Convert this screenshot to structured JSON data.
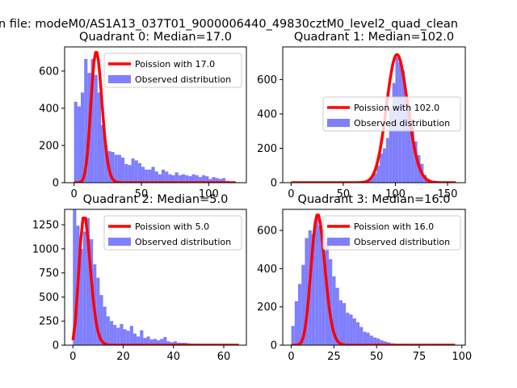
{
  "suptitle": "n file: modeM0/AS1A13_037T01_9000006440_49830cztM0_level2_quad_clean",
  "colors": {
    "observed": "#7f7fff",
    "poisson": "#ff0000"
  },
  "chart_data": [
    {
      "type": "bar",
      "title": "Quadrant 0: Median=17.0",
      "median": 17,
      "legend": {
        "placement": "upper-right",
        "entries": [
          "Poission with 17.0",
          "Observed distribution"
        ]
      },
      "xlim": [
        -7,
        128
      ],
      "ylim": [
        0,
        730
      ],
      "xticks": [
        0,
        50,
        100
      ],
      "yticks": [
        0,
        200,
        400,
        600
      ],
      "observed": {
        "name": "Observed distribution",
        "bins": [
          [
            0,
            435
          ],
          [
            2.5,
            410
          ],
          [
            5,
            485
          ],
          [
            7.5,
            665
          ],
          [
            10,
            590
          ],
          [
            12.5,
            665
          ],
          [
            15,
            580
          ],
          [
            17.5,
            485
          ],
          [
            20,
            310
          ],
          [
            22.5,
            200
          ],
          [
            25,
            170
          ],
          [
            27.5,
            165
          ],
          [
            30,
            150
          ],
          [
            32.5,
            150
          ],
          [
            35,
            135
          ],
          [
            37.5,
            100
          ],
          [
            40,
            95
          ],
          [
            42.5,
            130
          ],
          [
            45,
            120
          ],
          [
            47.5,
            105
          ],
          [
            50,
            85
          ],
          [
            52.5,
            70
          ],
          [
            55,
            70
          ],
          [
            57.5,
            85
          ],
          [
            60,
            60
          ],
          [
            62.5,
            45
          ],
          [
            65,
            70
          ],
          [
            67.5,
            60
          ],
          [
            70,
            45
          ],
          [
            72.5,
            40
          ],
          [
            75,
            55
          ],
          [
            77.5,
            40
          ],
          [
            80,
            45
          ],
          [
            82.5,
            40
          ],
          [
            85,
            35
          ],
          [
            87.5,
            45
          ],
          [
            90,
            40
          ],
          [
            92.5,
            30
          ],
          [
            95,
            40
          ],
          [
            97.5,
            35
          ],
          [
            100,
            20
          ],
          [
            102.5,
            30
          ],
          [
            105,
            25
          ],
          [
            107.5,
            20
          ],
          [
            110,
            25
          ],
          [
            112.5,
            10
          ]
        ],
        "bin_width": 2.5
      },
      "poisson": {
        "name": "Poission with 17.0",
        "lambda": 17,
        "x_range": [
          0,
          120
        ],
        "peak": 700
      }
    },
    {
      "type": "bar",
      "title": "Quadrant 1: Median=102.0",
      "median": 102,
      "legend": {
        "placement": "center-right",
        "entries": [
          "Poission with 102.0",
          "Observed distribution"
        ]
      },
      "xlim": [
        -8,
        167
      ],
      "ylim": [
        0,
        790
      ],
      "xticks": [
        0,
        50,
        100,
        150
      ],
      "yticks": [
        0,
        200,
        400,
        600
      ],
      "observed": {
        "name": "Observed distribution",
        "bins": [
          [
            70,
            5
          ],
          [
            73,
            20
          ],
          [
            76,
            30
          ],
          [
            79,
            55
          ],
          [
            82,
            100
          ],
          [
            85,
            170
          ],
          [
            88,
            200
          ],
          [
            91,
            260
          ],
          [
            94,
            430
          ],
          [
            97,
            580
          ],
          [
            100,
            730
          ],
          [
            103,
            700
          ],
          [
            106,
            650
          ],
          [
            109,
            500
          ],
          [
            112,
            440
          ],
          [
            115,
            370
          ],
          [
            118,
            240
          ],
          [
            121,
            160
          ],
          [
            124,
            110
          ],
          [
            127,
            45
          ],
          [
            130,
            20
          ],
          [
            133,
            10
          ]
        ],
        "bin_width": 3
      },
      "poisson": {
        "name": "Poission with 102.0",
        "lambda": 102,
        "x_range": [
          0,
          158
        ],
        "peak": 745
      }
    },
    {
      "type": "bar",
      "title": "Quadrant 2: Median=5.0",
      "median": 5,
      "legend": {
        "placement": "upper-right",
        "entries": [
          "Poission with 5.0",
          "Observed distribution"
        ]
      },
      "xlim": [
        -3.3,
        69
      ],
      "ylim": [
        0,
        1410
      ],
      "xticks": [
        0,
        20,
        40,
        60
      ],
      "yticks": [
        0,
        250,
        500,
        750,
        1000,
        1250
      ],
      "observed": {
        "name": "Observed distribution",
        "bins": [
          [
            0,
            1410
          ],
          [
            1.33,
            1240
          ],
          [
            2.67,
            1000
          ],
          [
            4,
            1180
          ],
          [
            5.33,
            1320
          ],
          [
            6.67,
            1100
          ],
          [
            8,
            840
          ],
          [
            9.33,
            700
          ],
          [
            10.67,
            520
          ],
          [
            12,
            400
          ],
          [
            13.33,
            300
          ],
          [
            14.67,
            250
          ],
          [
            16,
            210
          ],
          [
            17.33,
            180
          ],
          [
            18.67,
            220
          ],
          [
            20,
            165
          ],
          [
            21.33,
            150
          ],
          [
            22.67,
            200
          ],
          [
            24,
            120
          ],
          [
            25.33,
            90
          ],
          [
            26.67,
            155
          ],
          [
            28,
            75
          ],
          [
            29.33,
            90
          ],
          [
            30.67,
            60
          ],
          [
            32,
            65
          ],
          [
            33.33,
            50
          ],
          [
            34.67,
            65
          ],
          [
            36,
            85
          ],
          [
            37.33,
            40
          ],
          [
            38.67,
            30
          ],
          [
            40,
            40
          ],
          [
            41.33,
            25
          ],
          [
            42.67,
            25
          ],
          [
            44,
            25
          ],
          [
            45.33,
            20
          ],
          [
            46.67,
            15
          ],
          [
            48,
            15
          ],
          [
            49.33,
            10
          ],
          [
            50.67,
            10
          ],
          [
            52,
            10
          ],
          [
            53.33,
            8
          ],
          [
            54.67,
            5
          ]
        ],
        "bin_width": 1.33
      },
      "poisson": {
        "name": "Poission with 5.0",
        "lambda": 5,
        "x_range": [
          0,
          66
        ],
        "peak": 1320
      }
    },
    {
      "type": "bar",
      "title": "Quadrant 3: Median=16.0",
      "median": 16,
      "legend": {
        "placement": "upper-right",
        "entries": [
          "Poission with 16.0",
          "Observed distribution"
        ]
      },
      "xlim": [
        -5,
        102
      ],
      "ylim": [
        0,
        710
      ],
      "xticks": [
        0,
        25,
        50,
        75,
        100
      ],
      "yticks": [
        0,
        200,
        400,
        600
      ],
      "observed": {
        "name": "Observed distribution",
        "bins": [
          [
            0,
            100
          ],
          [
            2,
            230
          ],
          [
            4,
            320
          ],
          [
            6,
            420
          ],
          [
            8,
            560
          ],
          [
            10,
            600
          ],
          [
            12,
            580
          ],
          [
            14,
            660
          ],
          [
            16,
            625
          ],
          [
            18,
            600
          ],
          [
            20,
            540
          ],
          [
            22,
            450
          ],
          [
            24,
            360
          ],
          [
            26,
            300
          ],
          [
            28,
            235
          ],
          [
            30,
            220
          ],
          [
            32,
            170
          ],
          [
            34,
            160
          ],
          [
            36,
            140
          ],
          [
            38,
            120
          ],
          [
            40,
            95
          ],
          [
            42,
            70
          ],
          [
            44,
            65
          ],
          [
            46,
            50
          ],
          [
            48,
            40
          ],
          [
            50,
            35
          ],
          [
            52,
            25
          ],
          [
            54,
            20
          ],
          [
            56,
            15
          ],
          [
            58,
            10
          ],
          [
            60,
            8
          ],
          [
            62,
            5
          ]
        ],
        "bin_width": 2
      },
      "poisson": {
        "name": "Poission with 16.0",
        "lambda": 16,
        "x_range": [
          0,
          96
        ],
        "peak": 680
      }
    }
  ]
}
